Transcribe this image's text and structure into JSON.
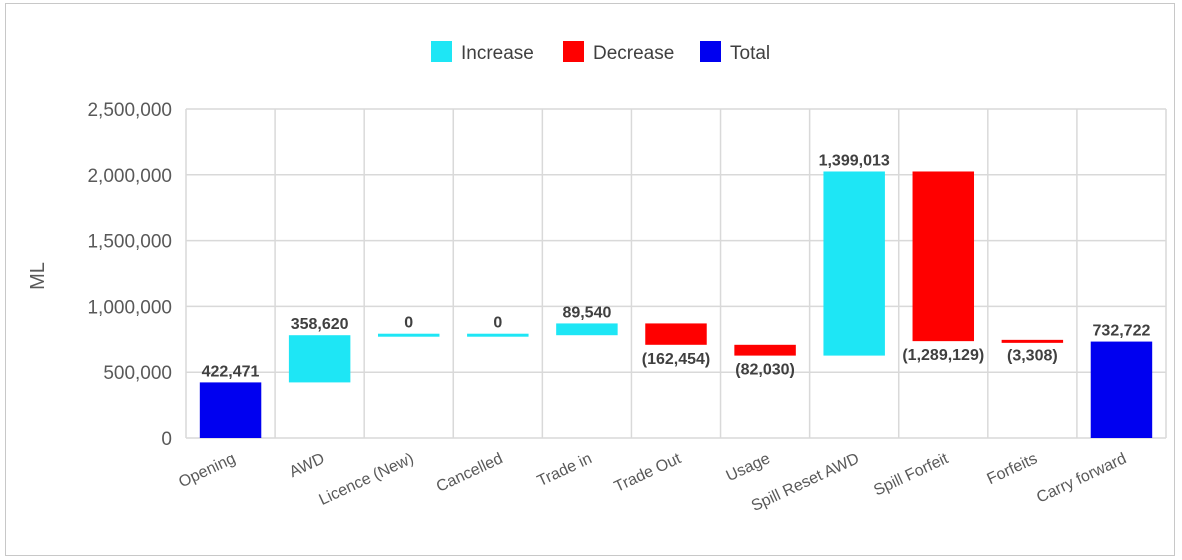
{
  "chart_data": {
    "type": "waterfall",
    "title": "",
    "xlabel": "",
    "ylabel": "ML",
    "ylim": [
      0,
      2500000
    ],
    "y_ticks": [
      0,
      500000,
      1000000,
      1500000,
      2000000,
      2500000
    ],
    "y_tick_labels": [
      "0",
      "500,000",
      "1,000,000",
      "1,500,000",
      "2,000,000",
      "2,500,000"
    ],
    "grid": true,
    "legend_position": "top",
    "legend": [
      {
        "key": "increase",
        "label": "Increase",
        "color": "#1ee6f5"
      },
      {
        "key": "decrease",
        "label": "Decrease",
        "color": "#ff0000"
      },
      {
        "key": "total",
        "label": "Total",
        "color": "#0000f0"
      }
    ],
    "categories": [
      "Opening",
      "AWD",
      "Licence (New)",
      "Cancelled",
      "Trade in",
      "Trade Out",
      "Usage",
      "Spill Reset AWD",
      "Spill Forfeit",
      "Forfeits",
      "Carry forward"
    ],
    "values": [
      422471,
      358620,
      0,
      0,
      89540,
      -162454,
      -82030,
      1399013,
      -1289129,
      -3308,
      732722
    ],
    "kinds": [
      "total",
      "increase",
      "increase",
      "increase",
      "increase",
      "decrease",
      "decrease",
      "increase",
      "decrease",
      "decrease",
      "total"
    ],
    "data_labels": [
      "422,471",
      "358,620",
      "0",
      "0",
      "89,540",
      "(162,454)",
      "(82,030)",
      "1,399,013",
      "(1,289,129)",
      "(3,308)",
      "732,722"
    ]
  }
}
